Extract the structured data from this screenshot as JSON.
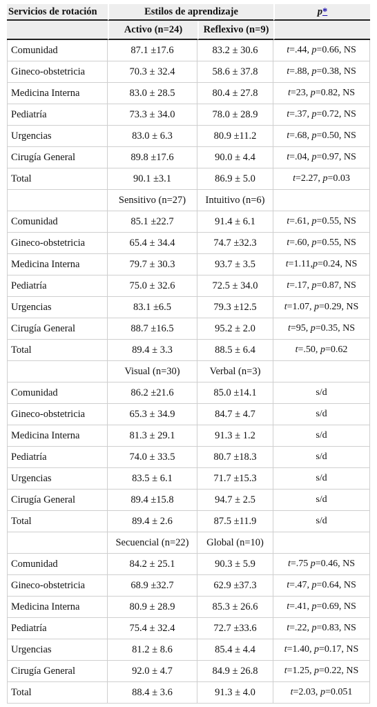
{
  "header": {
    "col1": "Servicios de rotación",
    "col2": "Estilos de aprendizaje",
    "col3_p": "p",
    "col3_star": "*"
  },
  "sections": [
    {
      "label_a": "Activo (n=24)",
      "label_b": "Reflexivo (n=9)",
      "rows": [
        {
          "service": "Comunidad",
          "a": "87.1 ±17.6",
          "b": "83.2 ± 30.6",
          "t": "=.44, ",
          "p": "=0.66, NS"
        },
        {
          "service": "Gineco-obstetricia",
          "a": "70.3 ± 32.4",
          "b": "58.6 ± 37.8",
          "t": "=.88, ",
          "p": "=0.38, NS"
        },
        {
          "service": "Medicina Interna",
          "a": "83.0 ± 28.5",
          "b": "80.4 ± 27.8",
          "t": "=23, ",
          "p": "=0.82, NS"
        },
        {
          "service": "Pediatría",
          "a": "73.3 ± 34.0",
          "b": "78.0 ± 28.9",
          "t": "=.37, ",
          "p": "=0.72, NS"
        },
        {
          "service": "Urgencias",
          "a": "83.0 ± 6.3",
          "b": "80.9 ±11.2",
          "t": "=.68, ",
          "p": "=0.50, NS"
        },
        {
          "service": "Cirugía General",
          "a": "89.8 ±17.6",
          "b": "90.0 ± 4.4",
          "t": "=.04, ",
          "p": "=0.97, NS"
        },
        {
          "service": "Total",
          "a": "90.1 ±3.1",
          "b": "86.9 ± 5.0",
          "t": "=2.27, ",
          "p": "=0.03"
        }
      ]
    },
    {
      "label_a": "Sensitivo (n=27)",
      "label_b": "Intuitivo (n=6)",
      "rows": [
        {
          "service": "Comunidad",
          "a": "85.1 ±22.7",
          "b": "91.4 ± 6.1",
          "t": "=.61, ",
          "p": "=0.55, NS"
        },
        {
          "service": "Gineco-obstetricia",
          "a": "65.4 ± 34.4",
          "b": "74.7 ±32.3",
          "t": "=.60, ",
          "p": "=0.55, NS"
        },
        {
          "service": "Medicina Interna",
          "a": "79.7 ± 30.3",
          "b": "93.7 ± 3.5",
          "t": "=1.11,",
          "p": "=0.24, NS"
        },
        {
          "service": "Pediatría",
          "a": "75.0 ± 32.6",
          "b": "72.5 ± 34.0",
          "t": "=.17, ",
          "p": "=0.87, NS"
        },
        {
          "service": "Urgencias",
          "a": "83.1 ±6.5",
          "b": "79.3 ±12.5",
          "t": "=1.07, ",
          "p": "=0.29, NS"
        },
        {
          "service": "Cirugía General",
          "a": "88.7 ±16.5",
          "b": "95.2 ± 2.0",
          "t": "=95, ",
          "p": "=0.35, NS"
        },
        {
          "service": "Total",
          "a": "89.4 ± 3.3",
          "b": "88.5 ± 6.4",
          "t": "=.50, ",
          "p": "=0.62"
        }
      ]
    },
    {
      "label_a": "Visual (n=30)",
      "label_b": "Verbal (n=3)",
      "rows": [
        {
          "service": "Comunidad",
          "a": "86.2 ±21.6",
          "b": "85.0 ±14.1",
          "sd": "s/d"
        },
        {
          "service": "Gineco-obstetricia",
          "a": "65.3 ± 34.9",
          "b": "84.7 ± 4.7",
          "sd": "s/d"
        },
        {
          "service": "Medicina Interna",
          "a": "81.3 ± 29.1",
          "b": "91.3 ± 1.2",
          "sd": "s/d"
        },
        {
          "service": "Pediatría",
          "a": "74.0 ± 33.5",
          "b": "80.7 ±18.3",
          "sd": "s/d"
        },
        {
          "service": "Urgencias",
          "a": "83.5 ± 6.1",
          "b": "71.7 ±15.3",
          "sd": "s/d"
        },
        {
          "service": "Cirugía General",
          "a": "89.4 ±15.8",
          "b": "94.7 ± 2.5",
          "sd": "s/d"
        },
        {
          "service": "Total",
          "a": "89.4 ± 2.6",
          "b": "87.5 ±11.9",
          "sd": "s/d"
        }
      ]
    },
    {
      "label_a": "Secuencial (n=22)",
      "label_b": "Global (n=10)",
      "rows": [
        {
          "service": "Comunidad",
          "a": "84.2 ± 25.1",
          "b": "90.3 ± 5.9",
          "t": "=.75 ",
          "p": "=0.46, NS"
        },
        {
          "service": "Gineco-obstetricia",
          "a": "68.9 ±32.7",
          "b": "62.9 ±37.3",
          "t": "=.47, ",
          "p": "=0.64, NS"
        },
        {
          "service": "Medicina Interna",
          "a": "80.9 ± 28.9",
          "b": "85.3 ± 26.6",
          "t": "=.41, ",
          "p": "=0.69, NS"
        },
        {
          "service": "Pediatría",
          "a": "75.4 ± 32.4",
          "b": "72.7 ±33.6",
          "t": "=.22, ",
          "p": "=0.83, NS"
        },
        {
          "service": "Urgencias",
          "a": "81.2 ± 8.6",
          "b": "85.4 ± 4.4",
          "t": "=1.40, ",
          "p": "=0.17, NS"
        },
        {
          "service": "Cirugía General",
          "a": "92.0 ± 4.7",
          "b": "84.9 ± 26.8",
          "t": "=1.25, ",
          "p": "=0.22, NS"
        },
        {
          "service": "Total",
          "a": "88.4 ± 3.6",
          "b": "91.3 ± 4.0",
          "t": "=2.03, ",
          "p": "=0.051"
        }
      ]
    }
  ]
}
